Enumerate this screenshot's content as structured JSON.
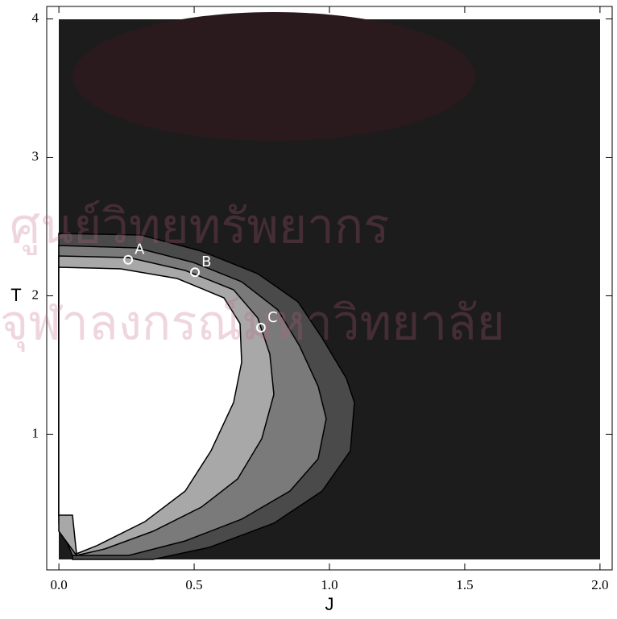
{
  "chart_data": {
    "type": "contour",
    "xlabel": "J",
    "ylabel": "T",
    "xlim": [
      -0.045,
      2.045
    ],
    "ylim": [
      0.02,
      4.09
    ],
    "xticks": [
      {
        "value": 0,
        "label": "0.0"
      },
      0.5,
      {
        "value": 1,
        "label": "1.0"
      },
      1.5,
      {
        "value": 2,
        "label": "2.0"
      }
    ],
    "yticks": [
      1,
      2,
      3,
      4
    ],
    "points": {
      "labels": [
        "A",
        "B",
        "C"
      ],
      "x": [
        0.256,
        0.503,
        0.747
      ],
      "y": [
        2.26,
        2.17,
        1.77
      ]
    },
    "watermark": [
      "ศูนย์วิทยทรัพยากร",
      "จุฬาลงกรณ์มหาวิทยาลัย"
    ]
  }
}
